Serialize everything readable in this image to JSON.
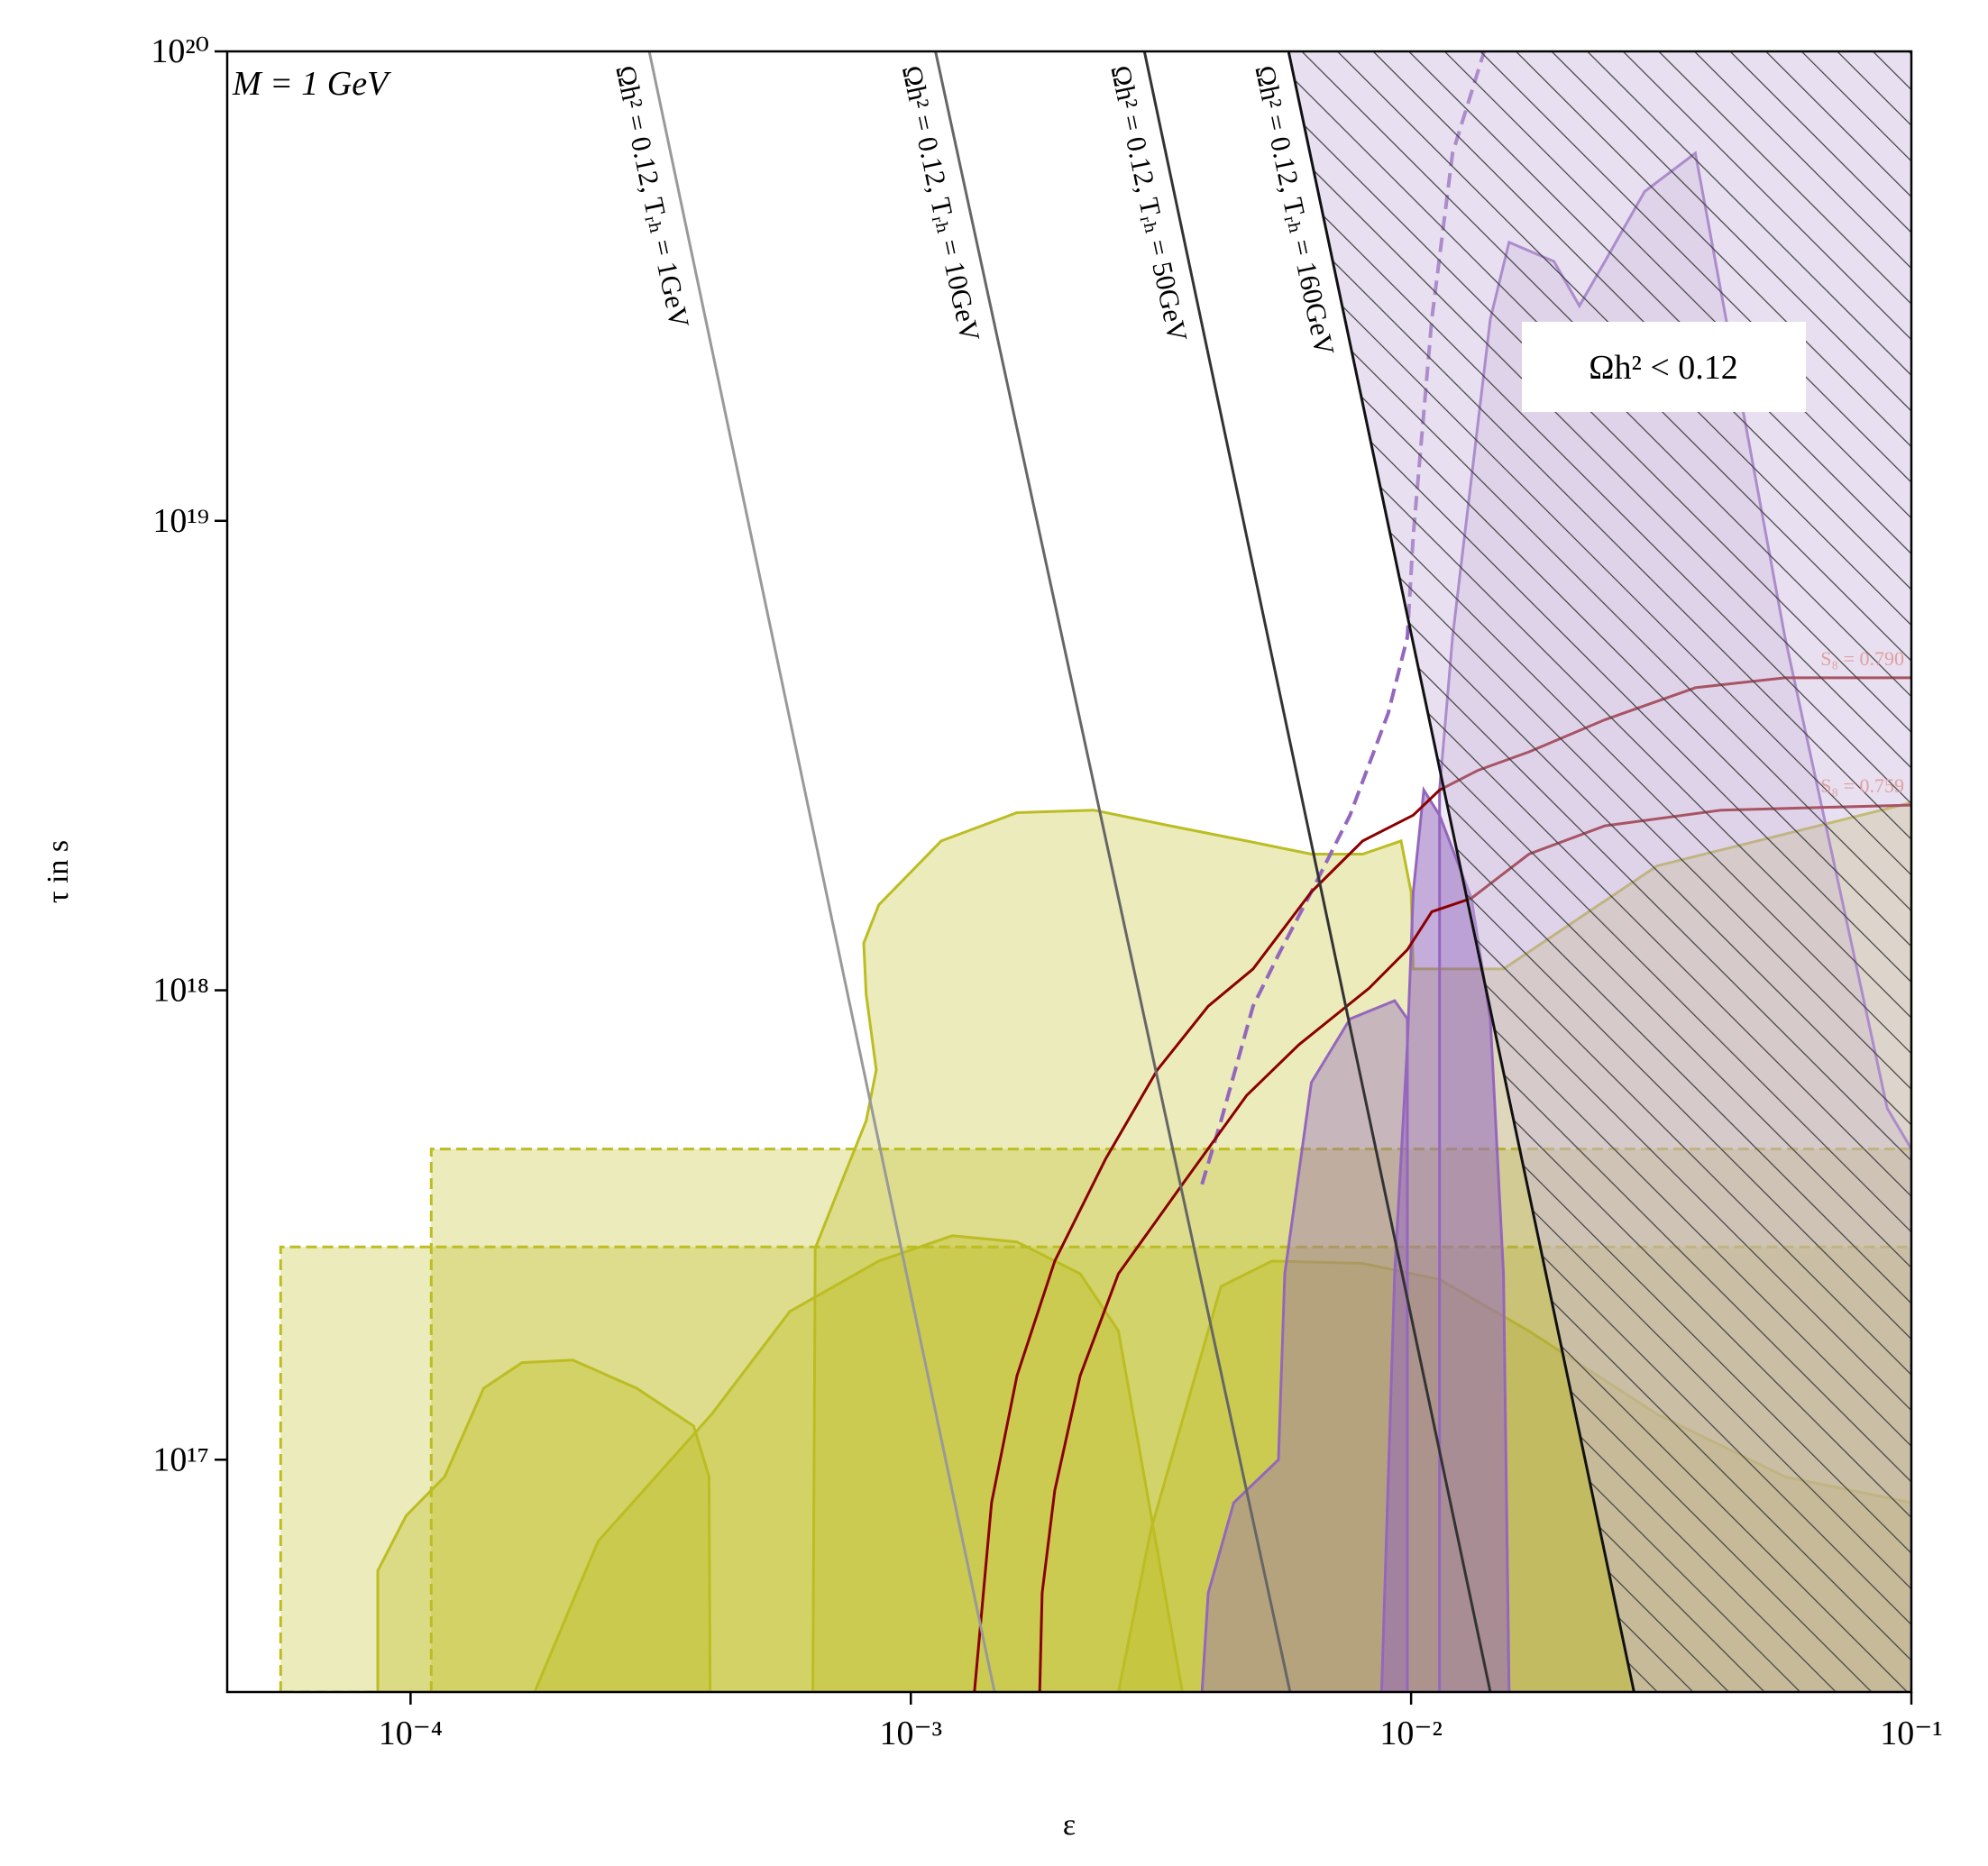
{
  "chart_data": {
    "type": "line",
    "xscale": "log",
    "yscale": "log",
    "xlabel": "ε",
    "ylabel": "τ in s",
    "xlim": [
      4.3e-05,
      0.1
    ],
    "ylim": [
      3.2e+16,
      1e+20
    ],
    "xticks": [
      {
        "value": 0.0001,
        "label": "10⁻⁴"
      },
      {
        "value": 0.001,
        "label": "10⁻³"
      },
      {
        "value": 0.01,
        "label": "10⁻²"
      },
      {
        "value": 0.1,
        "label": "10⁻¹"
      }
    ],
    "yticks": [
      {
        "value": 1e+17,
        "label": "10¹⁷"
      },
      {
        "value": 1e+18,
        "label": "10¹⁸"
      },
      {
        "value": 1e+19,
        "label": "10¹⁹"
      },
      {
        "value": 1e+20,
        "label": "10²⁰"
      }
    ],
    "annotations": [
      "M = 1 GeV",
      "Ωh² < 0.12"
    ],
    "series": [
      {
        "color": "#bcbd22",
        "fill": true,
        "opacity": 0.3,
        "dashed": true,
        "x": [
          5.5e-05,
          5.5e-05,
          0.1,
          0.1
        ],
        "values": [
          3.2e+16,
          2.84e+17,
          2.84e+17,
          3.2e+16
        ]
      },
      {
        "color": "#bcbd22",
        "fill": true,
        "opacity": 0.3,
        "dashed": true,
        "x": [
          0.00011,
          0.00011,
          0.1,
          0.1
        ],
        "values": [
          3.2e+16,
          4.59e+17,
          4.59e+17,
          3.2e+16
        ]
      },
      {
        "color": "#bcbd22",
        "fill": true,
        "opacity": 0.3,
        "x": [
          0.000637,
          0.000644,
          0.000724,
          0.000814,
          0.000853,
          0.000814,
          0.000805,
          0.000863,
          0.00115,
          0.00163,
          0.00232,
          0.0033,
          0.00469,
          0.00632,
          0.008,
          0.00955,
          0.01,
          0.0101,
          0.0153,
          0.031,
          0.1,
          0.1
        ],
        "values": [
          3.2e+16,
          2.82e+17,
          3.86e+17,
          5.27e+17,
          6.77e+17,
          9.8e+17,
          1.26e+18,
          1.52e+18,
          2.08e+18,
          2.39e+18,
          2.42e+18,
          2.24e+18,
          2.08e+18,
          1.95e+18,
          1.95e+18,
          2.08e+18,
          1.62e+18,
          1.11e+18,
          1.11e+18,
          1.84e+18,
          2.51e+18,
          3.2e+16
        ]
      },
      {
        "color": "#bcbd22",
        "fill": true,
        "opacity": 0.35,
        "x": [
          0.000177,
          0.000237,
          0.0004,
          0.000573,
          0.000863,
          0.00121,
          0.00163,
          0.00218,
          0.0026,
          0.00349
        ],
        "values": [
          3.2e+16,
          6.7e+16,
          1.25e+17,
          2.07e+17,
          2.65e+17,
          3e+17,
          2.91e+17,
          2.49e+17,
          1.88e+17,
          3.2e+16
        ]
      },
      {
        "color": "#bcbd22",
        "fill": true,
        "opacity": 0.35,
        "x": [
          8.6e-05,
          8.6e-05,
          9.8e-05,
          0.000117,
          0.00014,
          0.000167,
          0.000211,
          0.000283,
          0.000368,
          0.000395,
          0.000397
        ],
        "values": [
          3.2e+16,
          5.8e+16,
          7.6e+16,
          9.2e+16,
          1.42e+17,
          1.61e+17,
          1.63e+17,
          1.42e+17,
          1.18e+17,
          9.2e+16,
          3.2e+16
        ]
      },
      {
        "color": "#bcbd22",
        "fill": true,
        "opacity": 0.35,
        "x": [
          0.0026,
          0.00302,
          0.00417,
          0.00527,
          0.008,
          0.0114,
          0.0172,
          0.031,
          0.0559,
          0.1,
          0.1
        ],
        "values": [
          3.2e+16,
          7.1e+16,
          2.34e+17,
          2.65e+17,
          2.62e+17,
          2.42e+17,
          1.88e+17,
          1.25e+17,
          9.2e+16,
          8.1e+16,
          3.2e+16
        ]
      },
      {
        "color": "#9467bd",
        "fill": true,
        "opacity": 0.4,
        "x": [
          0.00382,
          0.00393,
          0.00442,
          0.00543,
          0.00559,
          0.00632,
          0.00755,
          0.00927,
          0.00983,
          0.00983
        ],
        "values": [
          3.2e+16,
          5.2e+16,
          8.1e+16,
          1e+17,
          2.49e+17,
          6.36e+17,
          8.69e+17,
          9.5e+17,
          8.69e+17,
          3.2e+16
        ]
      },
      {
        "color": "#9467bd",
        "fill": true,
        "opacity": 0.55,
        "x": [
          0.00873,
          0.00927,
          0.00983,
          0.0101,
          0.0106,
          0.0114,
          0.0132,
          0.0144,
          0.0153,
          0.0157
        ],
        "values": [
          3.2e+16,
          2.49e+17,
          7.66e+17,
          1.62e+18,
          2.67e+18,
          2.36e+18,
          1.57e+18,
          8.69e+17,
          2.49e+17,
          3.2e+16
        ]
      },
      {
        "color": "#9467bd",
        "fill": true,
        "opacity": 0.15,
        "x": [
          0.0114,
          0.0114,
          0.0121,
          0.0144,
          0.0157,
          0.0193,
          0.0217,
          0.0244,
          0.0293,
          0.037,
          0.0559,
          0.0895,
          0.1,
          0.1
        ],
        "values": [
          3.2e+16,
          2.67e+18,
          5.65e+18,
          2.69e+19,
          3.92e+19,
          3.57e+19,
          2.87e+19,
          3.57e+19,
          5.03e+19,
          6.07e+19,
          5.65e+18,
          5.6e+17,
          4.59e+17,
          3.2e+16
        ]
      },
      {
        "color": "#9467bd",
        "dashed": true,
        "width": 4,
        "x": [
          0.00382,
          0.00417,
          0.00483,
          0.00543,
          0.00632,
          0.00755,
          0.009,
          0.00983,
          0.0101,
          0.011,
          0.0121,
          0.014
        ],
        "values": [
          3.86e+17,
          5.27e+17,
          9.25e+17,
          1.19e+18,
          1.62e+18,
          2.36e+18,
          3.89e+18,
          5.65e+18,
          9.3e+18,
          2.69e+19,
          6.07e+19,
          1e+20
        ]
      },
      {
        "color": "#8b0000",
        "width": 3,
        "label": "S₈ = 0.790",
        "label_position": "end",
        "x": [
          0.00134,
          0.00145,
          0.00163,
          0.00194,
          0.00245,
          0.00311,
          0.00393,
          0.00483,
          0.00632,
          0.008,
          0.0101,
          0.0114,
          0.0136,
          0.0172,
          0.0244,
          0.037,
          0.0559,
          0.1
        ],
        "values": [
          3.2e+16,
          8.1e+16,
          1.51e+17,
          2.65e+17,
          4.37e+17,
          6.77e+17,
          9.25e+17,
          1.11e+18,
          1.62e+18,
          2.08e+18,
          2.36e+18,
          2.67e+18,
          2.94e+18,
          3.22e+18,
          3.77e+18,
          4.41e+18,
          4.63e+18,
          4.63e+18
        ]
      },
      {
        "color": "#8b0000",
        "width": 3,
        "label": "S₈ = 0.759",
        "label_position": "end",
        "x": [
          0.00181,
          0.00183,
          0.00194,
          0.00218,
          0.0026,
          0.00349,
          0.00469,
          0.00597,
          0.00824,
          0.00983,
          0.011,
          0.0132,
          0.0172,
          0.0244,
          0.0417,
          0.1
        ],
        "values": [
          3.2e+16,
          5.2e+16,
          8.6e+16,
          1.51e+17,
          2.49e+17,
          3.86e+17,
          5.97e+17,
          7.66e+17,
          1.01e+18,
          1.22e+18,
          1.47e+18,
          1.57e+18,
          1.95e+18,
          2.24e+18,
          2.42e+18,
          2.48e+18
        ]
      },
      {
        "color": "#999999",
        "width": 3,
        "label": "Ωh² = 0.12, Tᵣₕ = 1GeV",
        "label_position": "along",
        "x": [
          0.0003,
          0.00147
        ],
        "values": [
          1e+20,
          3.2e+16
        ]
      },
      {
        "color": "#666666",
        "width": 3,
        "label": "Ωh² = 0.12, Tᵣₕ = 10GeV",
        "label_position": "along",
        "x": [
          0.00112,
          0.00573
        ],
        "values": [
          1e+20,
          3.2e+16
        ]
      },
      {
        "color": "#333333",
        "width": 3,
        "label": "Ωh² = 0.12, Tᵣₕ = 50GeV",
        "label_position": "along",
        "x": [
          0.00293,
          0.0144
        ],
        "values": [
          1e+20,
          3.2e+16
        ]
      },
      {
        "color": "#111111",
        "width": 3,
        "label": "Ωh² = 0.12, Tᵣₕ = 160GeV",
        "label_position": "along",
        "hatch": true,
        "x": [
          0.00569,
          0.0279
        ],
        "values": [
          1e+20,
          3.2e+16
        ]
      }
    ]
  }
}
